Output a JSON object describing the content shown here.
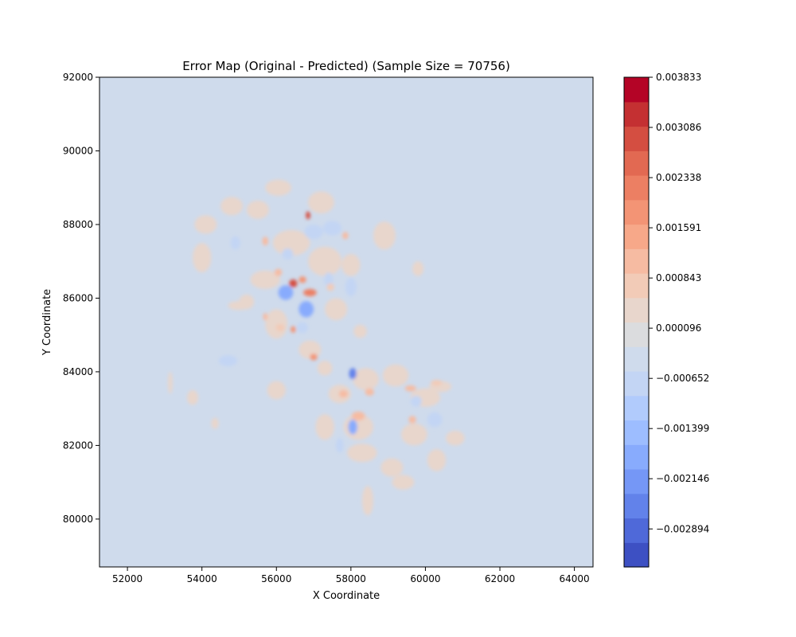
{
  "chart_data": {
    "type": "heatmap",
    "title": "Error Map (Original - Predicted) (Sample Size = 70756)",
    "xlabel": "X Coordinate",
    "ylabel": "Y Coordinate",
    "xlim": [
      51250,
      64500
    ],
    "ylim": [
      78700,
      92000
    ],
    "x_ticks": [
      52000,
      54000,
      56000,
      58000,
      60000,
      62000,
      64000
    ],
    "y_ticks": [
      80000,
      82000,
      84000,
      86000,
      88000,
      90000,
      92000
    ],
    "grid": false,
    "colormap": "coolwarm",
    "background_color": "#cfdbec",
    "colorbar": {
      "range": [
        -0.00346,
        0.003833
      ],
      "levels": 20,
      "tick_values": [
        -0.002894,
        -0.002146,
        -0.001399,
        -0.000652,
        9.6e-05,
        0.000843,
        0.001591,
        0.002338,
        0.003086,
        0.003833
      ],
      "tick_labels": [
        "−0.002894",
        "−0.002146",
        "−0.001399",
        "−0.000652",
        "0.000096",
        "0.000843",
        "0.001591",
        "0.002338",
        "0.003086",
        "0.003833"
      ],
      "colors": [
        "#3d50c3",
        "#4f69d9",
        "#6282ea",
        "#7597f6",
        "#88abfd",
        "#9dbdff",
        "#b1cbfc",
        "#c3d5f4",
        "#cfdbec",
        "#dbdcde",
        "#e8d6cc",
        "#f2cbb7",
        "#f6bba2",
        "#f7a889",
        "#f39475",
        "#ec7f63",
        "#e26952",
        "#d44e41",
        "#c43032",
        "#b40426"
      ]
    },
    "regions": [
      {
        "x": 58900,
        "y": 87700,
        "rx": 300,
        "ry": 380,
        "value": 0.00035
      },
      {
        "x": 59800,
        "y": 86800,
        "rx": 150,
        "ry": 200,
        "value": 0.00025
      },
      {
        "x": 54100,
        "y": 88000,
        "rx": 300,
        "ry": 250,
        "value": 0.0003
      },
      {
        "x": 54800,
        "y": 88500,
        "rx": 300,
        "ry": 250,
        "value": 0.00035
      },
      {
        "x": 54000,
        "y": 87100,
        "rx": 250,
        "ry": 400,
        "value": 0.0003
      },
      {
        "x": 55500,
        "y": 88400,
        "rx": 300,
        "ry": 250,
        "value": 0.0003
      },
      {
        "x": 56050,
        "y": 89000,
        "rx": 350,
        "ry": 220,
        "value": 0.0003
      },
      {
        "x": 57200,
        "y": 88600,
        "rx": 350,
        "ry": 300,
        "value": 0.00035
      },
      {
        "x": 56400,
        "y": 87500,
        "rx": 500,
        "ry": 350,
        "value": 0.0004
      },
      {
        "x": 55700,
        "y": 86500,
        "rx": 400,
        "ry": 250,
        "value": 0.0004
      },
      {
        "x": 57300,
        "y": 87000,
        "rx": 450,
        "ry": 400,
        "value": 0.0004
      },
      {
        "x": 58000,
        "y": 86900,
        "rx": 250,
        "ry": 300,
        "value": 0.0003
      },
      {
        "x": 57600,
        "y": 85700,
        "rx": 300,
        "ry": 300,
        "value": 0.00035
      },
      {
        "x": 56000,
        "y": 85300,
        "rx": 300,
        "ry": 400,
        "value": 0.00035
      },
      {
        "x": 55200,
        "y": 85900,
        "rx": 200,
        "ry": 200,
        "value": 0.0003
      },
      {
        "x": 56900,
        "y": 84600,
        "rx": 300,
        "ry": 250,
        "value": 0.0003
      },
      {
        "x": 58250,
        "y": 85100,
        "rx": 180,
        "ry": 180,
        "value": 0.0003
      },
      {
        "x": 57300,
        "y": 84100,
        "rx": 200,
        "ry": 200,
        "value": 0.00025
      },
      {
        "x": 56000,
        "y": 83500,
        "rx": 250,
        "ry": 250,
        "value": 0.0003
      },
      {
        "x": 57700,
        "y": 83400,
        "rx": 300,
        "ry": 250,
        "value": 0.00035
      },
      {
        "x": 58400,
        "y": 83800,
        "rx": 350,
        "ry": 300,
        "value": 0.0004
      },
      {
        "x": 59200,
        "y": 83900,
        "rx": 350,
        "ry": 300,
        "value": 0.00035
      },
      {
        "x": 60000,
        "y": 83300,
        "rx": 400,
        "ry": 250,
        "value": 0.00035
      },
      {
        "x": 60400,
        "y": 83600,
        "rx": 300,
        "ry": 150,
        "value": 0.0004
      },
      {
        "x": 58200,
        "y": 82500,
        "rx": 400,
        "ry": 350,
        "value": 0.0004
      },
      {
        "x": 59700,
        "y": 82300,
        "rx": 350,
        "ry": 300,
        "value": 0.00035
      },
      {
        "x": 57300,
        "y": 82500,
        "rx": 250,
        "ry": 350,
        "value": 0.0003
      },
      {
        "x": 58300,
        "y": 81800,
        "rx": 400,
        "ry": 250,
        "value": 0.0003
      },
      {
        "x": 59100,
        "y": 81400,
        "rx": 300,
        "ry": 250,
        "value": 0.0003
      },
      {
        "x": 60300,
        "y": 81600,
        "rx": 250,
        "ry": 300,
        "value": 0.0003
      },
      {
        "x": 60800,
        "y": 82200,
        "rx": 250,
        "ry": 200,
        "value": 0.0003
      },
      {
        "x": 59400,
        "y": 81000,
        "rx": 300,
        "ry": 200,
        "value": 0.0003
      },
      {
        "x": 58450,
        "y": 80500,
        "rx": 150,
        "ry": 400,
        "value": 0.0003
      },
      {
        "x": 53750,
        "y": 83300,
        "rx": 150,
        "ry": 200,
        "value": 0.0003
      },
      {
        "x": 53150,
        "y": 83700,
        "rx": 60,
        "ry": 300,
        "value": 0.00025
      },
      {
        "x": 54350,
        "y": 82600,
        "rx": 100,
        "ry": 150,
        "value": 0.0003
      },
      {
        "x": 54900,
        "y": 87500,
        "rx": 130,
        "ry": 180,
        "value": -0.0008
      },
      {
        "x": 55000,
        "y": 85800,
        "rx": 300,
        "ry": 120,
        "value": 0.0003
      },
      {
        "x": 54700,
        "y": 84300,
        "rx": 250,
        "ry": 150,
        "value": -0.0007
      },
      {
        "x": 56250,
        "y": 86150,
        "rx": 200,
        "ry": 200,
        "value": -0.0018
      },
      {
        "x": 56800,
        "y": 85700,
        "rx": 200,
        "ry": 220,
        "value": -0.002
      },
      {
        "x": 57500,
        "y": 87900,
        "rx": 250,
        "ry": 200,
        "value": -0.0007
      },
      {
        "x": 57000,
        "y": 87800,
        "rx": 250,
        "ry": 200,
        "value": -0.0007
      },
      {
        "x": 58000,
        "y": 86300,
        "rx": 150,
        "ry": 250,
        "value": -0.0008
      },
      {
        "x": 57400,
        "y": 86500,
        "rx": 120,
        "ry": 200,
        "value": -0.0007
      },
      {
        "x": 56300,
        "y": 87200,
        "rx": 150,
        "ry": 150,
        "value": -0.0006
      },
      {
        "x": 58050,
        "y": 82500,
        "rx": 120,
        "ry": 200,
        "value": -0.002
      },
      {
        "x": 58050,
        "y": 83950,
        "rx": 100,
        "ry": 150,
        "value": -0.0025
      },
      {
        "x": 60250,
        "y": 82700,
        "rx": 200,
        "ry": 200,
        "value": -0.0009
      },
      {
        "x": 59750,
        "y": 83200,
        "rx": 150,
        "ry": 150,
        "value": -0.0008
      },
      {
        "x": 56700,
        "y": 85200,
        "rx": 150,
        "ry": 150,
        "value": -0.0008
      },
      {
        "x": 57700,
        "y": 82000,
        "rx": 100,
        "ry": 200,
        "value": -0.0006
      },
      {
        "x": 56450,
        "y": 86400,
        "rx": 110,
        "ry": 110,
        "value": 0.003
      },
      {
        "x": 56850,
        "y": 88250,
        "rx": 60,
        "ry": 110,
        "value": 0.003
      },
      {
        "x": 56900,
        "y": 86150,
        "rx": 180,
        "ry": 100,
        "value": 0.0022
      },
      {
        "x": 56700,
        "y": 86500,
        "rx": 100,
        "ry": 90,
        "value": 0.0018
      },
      {
        "x": 57000,
        "y": 84400,
        "rx": 100,
        "ry": 90,
        "value": 0.002
      },
      {
        "x": 56450,
        "y": 85150,
        "rx": 70,
        "ry": 90,
        "value": 0.0018
      },
      {
        "x": 55700,
        "y": 85500,
        "rx": 60,
        "ry": 100,
        "value": 0.0012
      },
      {
        "x": 55700,
        "y": 87550,
        "rx": 80,
        "ry": 120,
        "value": 0.0012
      },
      {
        "x": 57850,
        "y": 87700,
        "rx": 80,
        "ry": 100,
        "value": 0.001
      },
      {
        "x": 58200,
        "y": 82800,
        "rx": 180,
        "ry": 120,
        "value": 0.0012
      },
      {
        "x": 59600,
        "y": 83550,
        "rx": 150,
        "ry": 80,
        "value": 0.0012
      },
      {
        "x": 57800,
        "y": 83400,
        "rx": 120,
        "ry": 100,
        "value": 0.001
      },
      {
        "x": 58500,
        "y": 83450,
        "rx": 120,
        "ry": 100,
        "value": 0.001
      },
      {
        "x": 56050,
        "y": 86700,
        "rx": 100,
        "ry": 100,
        "value": 0.001
      },
      {
        "x": 57450,
        "y": 86300,
        "rx": 100,
        "ry": 100,
        "value": 0.0008
      },
      {
        "x": 59650,
        "y": 82700,
        "rx": 100,
        "ry": 100,
        "value": 0.001
      },
      {
        "x": 60300,
        "y": 83700,
        "rx": 150,
        "ry": 80,
        "value": 0.0009
      },
      {
        "x": 56100,
        "y": 85200,
        "rx": 120,
        "ry": 100,
        "value": 0.0009
      }
    ]
  }
}
